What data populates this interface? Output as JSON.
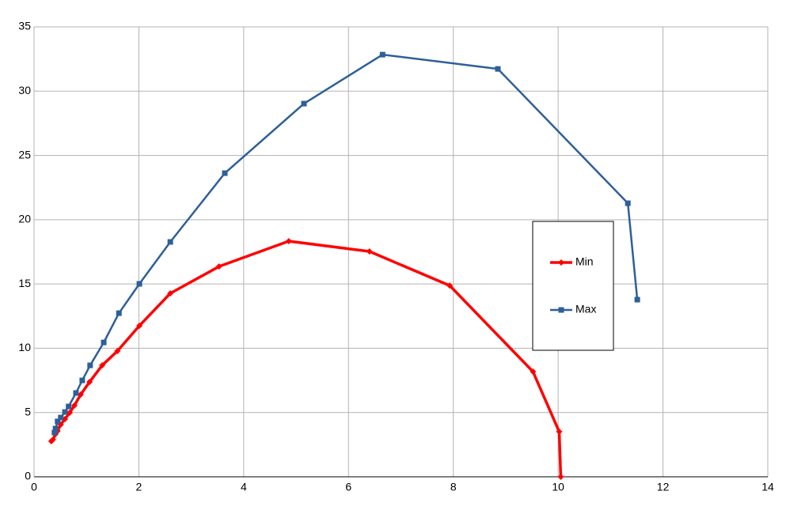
{
  "chart_data": {
    "type": "line",
    "xlim": [
      0,
      14
    ],
    "xticks": [
      0,
      2,
      4,
      6,
      8,
      10,
      12,
      14
    ],
    "ylim": [
      0,
      35
    ],
    "yticks": [
      0,
      5,
      10,
      15,
      20,
      25,
      30,
      35
    ],
    "grid": true,
    "legend": "right",
    "series": [
      {
        "name": "Min",
        "color": "#ff0000",
        "marker": "diamond",
        "x": [
          0.33,
          0.36,
          0.41,
          0.45,
          0.51,
          0.59,
          0.68,
          0.77,
          0.89,
          1.06,
          1.3,
          1.59,
          2.01,
          2.6,
          3.53,
          4.86,
          6.4,
          7.93,
          9.52,
          10.02,
          10.05
        ],
        "values": [
          2.77,
          2.89,
          3.32,
          3.57,
          4.06,
          4.49,
          4.98,
          5.54,
          6.4,
          7.38,
          8.67,
          9.78,
          11.75,
          14.27,
          16.36,
          18.33,
          17.53,
          14.88,
          8.18,
          3.51,
          0
        ]
      },
      {
        "name": "Max",
        "color": "#2e5f99",
        "marker": "square",
        "x": [
          0.39,
          0.41,
          0.45,
          0.51,
          0.59,
          0.66,
          0.8,
          0.92,
          1.07,
          1.33,
          1.62,
          2.01,
          2.6,
          3.64,
          5.15,
          6.65,
          8.85,
          11.33,
          11.51
        ],
        "values": [
          3.44,
          3.75,
          4.31,
          4.61,
          5.04,
          5.47,
          6.52,
          7.5,
          8.67,
          10.45,
          12.73,
          15.01,
          18.27,
          23.62,
          29.03,
          32.84,
          31.73,
          21.28,
          13.78
        ]
      }
    ]
  }
}
